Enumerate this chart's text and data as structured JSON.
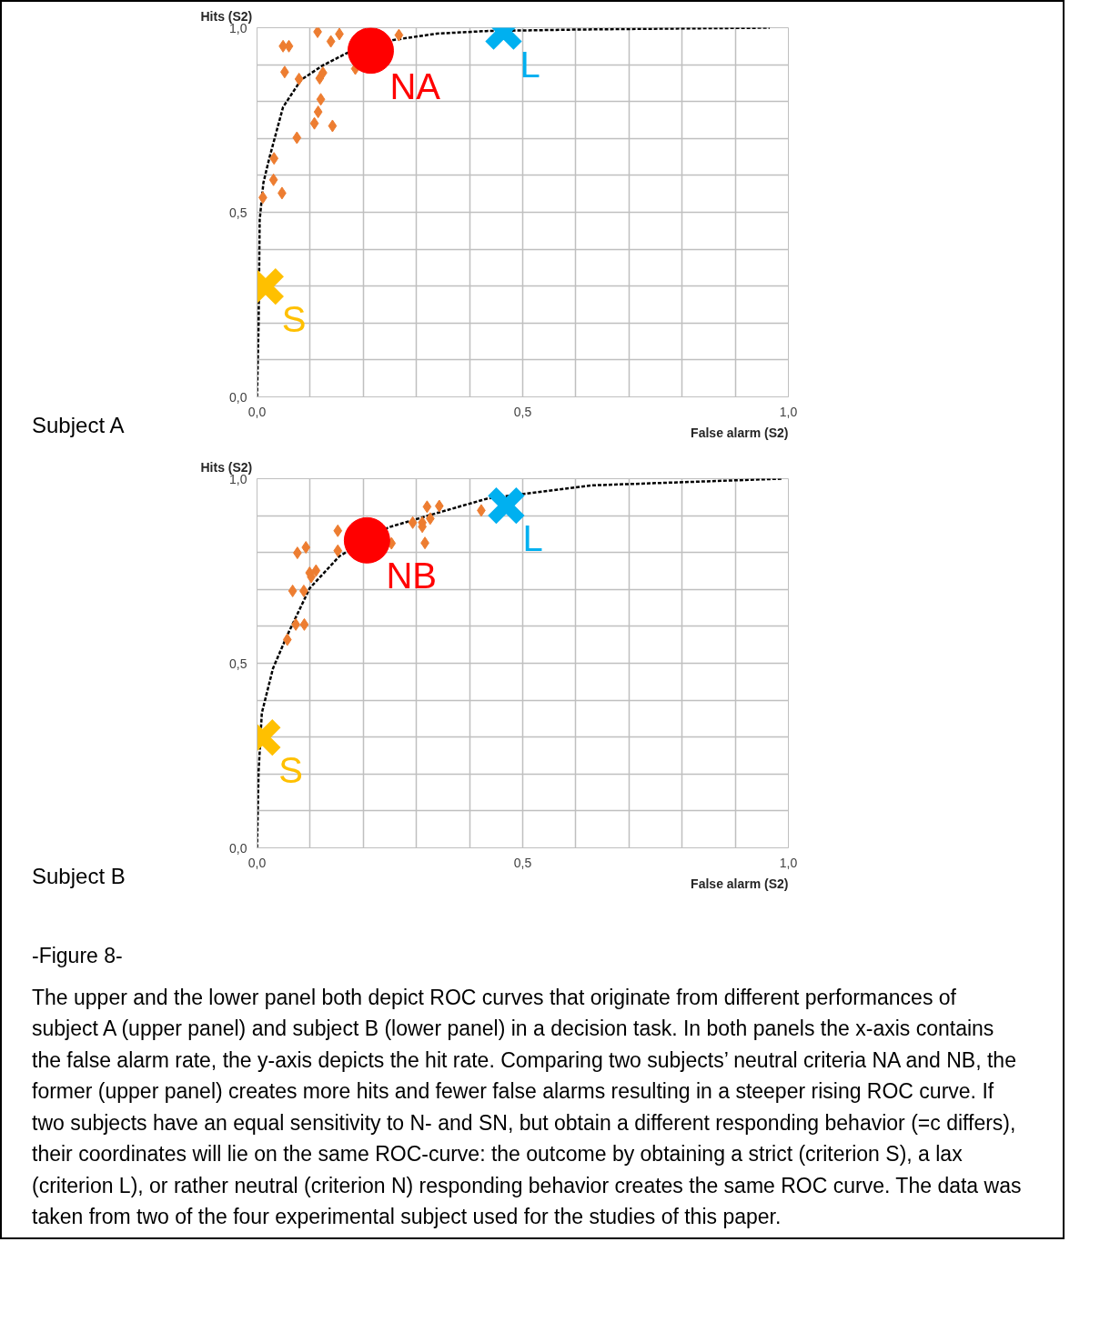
{
  "chart_data": [
    {
      "type": "scatter",
      "title": "Subject A",
      "xlabel": "False alarm (S2)",
      "ylabel": "Hits (S2)",
      "xlim": [
        0,
        1
      ],
      "ylim": [
        0,
        1
      ],
      "xticks": [
        {
          "value": 0,
          "label": "0,0"
        },
        {
          "value": 0.1,
          "label": null
        },
        {
          "value": 0.2,
          "label": null
        },
        {
          "value": 0.3,
          "label": null
        },
        {
          "value": 0.4,
          "label": null
        },
        {
          "value": 0.5,
          "label": "0,5"
        },
        {
          "value": 0.6,
          "label": null
        },
        {
          "value": 0.7,
          "label": null
        },
        {
          "value": 0.8,
          "label": null
        },
        {
          "value": 0.9,
          "label": null
        },
        {
          "value": 1,
          "label": "1,0"
        }
      ],
      "yticks": [
        {
          "value": 0,
          "label": "0,0"
        },
        {
          "value": 0.1,
          "label": null
        },
        {
          "value": 0.2,
          "label": null
        },
        {
          "value": 0.3,
          "label": null
        },
        {
          "value": 0.4,
          "label": null
        },
        {
          "value": 0.5,
          "label": "0,5"
        },
        {
          "value": 0.6,
          "label": null
        },
        {
          "value": 0.7,
          "label": null
        },
        {
          "value": 0.8,
          "label": null
        },
        {
          "value": 0.9,
          "label": null
        },
        {
          "value": 1,
          "label": "1,0"
        }
      ],
      "grid": true,
      "series": [
        {
          "type": "line",
          "line_style": "dashed",
          "color": "#000000",
          "x": [
            0,
            0.003,
            0.005,
            0.012,
            0.023,
            0.049,
            0.083,
            0.124,
            0.17,
            0.257,
            0.338,
            0.431,
            0.6,
            0.8,
            0.965
          ],
          "values": [
            0,
            0.2,
            0.48,
            0.58,
            0.646,
            0.785,
            0.859,
            0.898,
            0.932,
            0.967,
            0.984,
            0.991,
            0.995,
            0.998,
            1.0
          ]
        },
        {
          "marker": "diamond",
          "color": "#ed7d31",
          "x": [
            0.114,
            0.155,
            0.139,
            0.267,
            0.049,
            0.06,
            0.052,
            0.079,
            0.124,
            0.118,
            0.185,
            0.12,
            0.115,
            0.108,
            0.142,
            0.075,
            0.032,
            0.031,
            0.047,
            0.011
          ],
          "values": [
            0.989,
            0.983,
            0.963,
            0.98,
            0.95,
            0.95,
            0.88,
            0.861,
            0.878,
            0.863,
            0.889,
            0.806,
            0.772,
            0.741,
            0.734,
            0.702,
            0.646,
            0.588,
            0.552,
            0.54
          ]
        },
        {
          "marker": "circle",
          "name": "NA",
          "color": "#ff0000",
          "x": [
            0.214
          ],
          "values": [
            0.938
          ]
        },
        {
          "marker": "cross",
          "name": "L",
          "color": "#00b0f0",
          "x": [
            0.464
          ],
          "values": [
            0.99
          ]
        },
        {
          "marker": "cross",
          "name": "S",
          "color": "#ffc000",
          "x": [
            0.016
          ],
          "values": [
            0.299
          ]
        }
      ]
    },
    {
      "type": "scatter",
      "title": "Subject B",
      "xlabel": "False alarm (S2)",
      "ylabel": "Hits (S2)",
      "xlim": [
        0,
        1
      ],
      "ylim": [
        0,
        1
      ],
      "xticks": [
        {
          "value": 0,
          "label": "0,0"
        },
        {
          "value": 0.1,
          "label": null
        },
        {
          "value": 0.2,
          "label": null
        },
        {
          "value": 0.3,
          "label": null
        },
        {
          "value": 0.4,
          "label": null
        },
        {
          "value": 0.5,
          "label": "0,5"
        },
        {
          "value": 0.6,
          "label": null
        },
        {
          "value": 0.7,
          "label": null
        },
        {
          "value": 0.8,
          "label": null
        },
        {
          "value": 0.9,
          "label": null
        },
        {
          "value": 1,
          "label": "1,0"
        }
      ],
      "yticks": [
        {
          "value": 0,
          "label": "0,0"
        },
        {
          "value": 0.1,
          "label": null
        },
        {
          "value": 0.2,
          "label": null
        },
        {
          "value": 0.3,
          "label": null
        },
        {
          "value": 0.4,
          "label": null
        },
        {
          "value": 0.5,
          "label": "0,5"
        },
        {
          "value": 0.6,
          "label": null
        },
        {
          "value": 0.7,
          "label": null
        },
        {
          "value": 0.8,
          "label": null
        },
        {
          "value": 0.9,
          "label": null
        },
        {
          "value": 1,
          "label": "1,0"
        }
      ],
      "grid": true,
      "series": [
        {
          "type": "line",
          "line_style": "dashed",
          "color": "#000000",
          "x": [
            0,
            0.003,
            0.009,
            0.03,
            0.056,
            0.099,
            0.155,
            0.247,
            0.329,
            0.433,
            0.631,
            0.988
          ],
          "values": [
            0,
            0.208,
            0.365,
            0.486,
            0.573,
            0.703,
            0.79,
            0.868,
            0.903,
            0.946,
            0.982,
            1.0
          ]
        },
        {
          "marker": "diamond",
          "color": "#ed7d31",
          "x": [
            0.32,
            0.343,
            0.422,
            0.293,
            0.311,
            0.326,
            0.311,
            0.316,
            0.152,
            0.152,
            0.253,
            0.076,
            0.092,
            0.099,
            0.111,
            0.102,
            0.067,
            0.088,
            0.073,
            0.089,
            0.057
          ],
          "values": [
            0.924,
            0.926,
            0.914,
            0.881,
            0.881,
            0.892,
            0.87,
            0.826,
            0.859,
            0.805,
            0.825,
            0.799,
            0.814,
            0.745,
            0.751,
            0.734,
            0.696,
            0.696,
            0.605,
            0.605,
            0.564
          ]
        },
        {
          "marker": "circle",
          "name": "NB",
          "color": "#ff0000",
          "x": [
            0.207
          ],
          "values": [
            0.833
          ]
        },
        {
          "marker": "cross",
          "name": "L",
          "color": "#00b0f0",
          "x": [
            0.469
          ],
          "values": [
            0.927
          ]
        },
        {
          "marker": "cross",
          "name": "S",
          "color": "#ffc000",
          "x": [
            0.01
          ],
          "values": [
            0.299
          ]
        }
      ],
      "annotations": [
        "-Figure 8-",
        "The upper and the lower panel both depict ROC curves that originate from different performances of subject A (upper panel) and subject B (lower panel) in a decision task. In both panels the x-axis contains the false alarm rate, the y-axis depicts the hit rate. Comparing two subjects’ neutral criteria NA and NB, the former (upper panel) creates more hits and fewer false alarms resulting in a steeper rising ROC curve. If two subjects have an equal sensitivity to N- and SN, but obtain a different responding behavior (=c differs), their coordinates will lie on the same ROC-curve: the outcome by obtaining a strict (criterion S), a lax (criterion L), or rather neutral (criterion N) responding behavior creates the same ROC curve. The data was taken from two of the four experimental subject used for the studies of this paper."
      ]
    }
  ]
}
